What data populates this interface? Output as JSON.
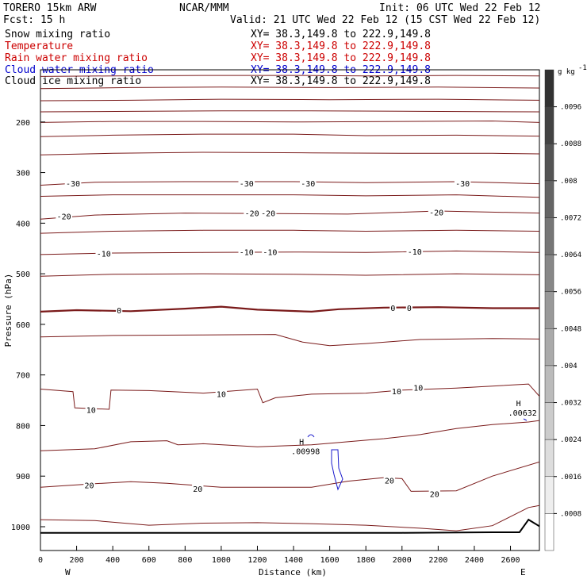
{
  "header": {
    "model": "TORERO  15km ARW",
    "org": "NCAR/MMM",
    "init": "Init: 06 UTC Wed 22 Feb 12",
    "fcst": "Fcst:   15 h",
    "valid": "Valid: 21 UTC Wed 22 Feb 12 (15 CST Wed 22 Feb 12)",
    "fields": [
      {
        "name": "Snow mixing ratio",
        "xy": "XY=  38.3,149.8 to 222.9,149.8",
        "color": "#000000"
      },
      {
        "name": "Temperature",
        "xy": "XY=  38.3,149.8 to 222.9,149.8",
        "color": "#cc0000"
      },
      {
        "name": "Rain water mixing ratio",
        "xy": "XY=  38.3,149.8 to 222.9,149.8",
        "color": "#cc0000"
      },
      {
        "name": "Cloud water mixing ratio",
        "xy": "XY=  38.3,149.8 to 222.9,149.8",
        "color": "#0000cc"
      },
      {
        "name": "Cloud ice mixing ratio",
        "xy": "XY=  38.3,149.8 to 222.9,149.8",
        "color": "#000000"
      }
    ]
  },
  "colors": {
    "temperature": "#7a1a1a",
    "freezing": "#7a1a1a",
    "cloud_water": "#1a1acc",
    "terrain": "#000000"
  },
  "chart_data": {
    "type": "contour",
    "xlabel": "Distance (km)",
    "ylabel": "Pressure (hPa)",
    "xlim": [
      0,
      2760
    ],
    "ylim": [
      1000,
      100
    ],
    "x_ticks": [
      0,
      200,
      400,
      600,
      800,
      1000,
      1200,
      1400,
      1600,
      1800,
      2000,
      2200,
      2400,
      2600
    ],
    "y_ticks": [
      200,
      300,
      400,
      500,
      600,
      700,
      800,
      900,
      1000
    ],
    "x_end_labels": {
      "left": "W",
      "right": "E"
    },
    "colorbar": {
      "unit": "g kg",
      "unit_exp": "-1",
      "levels": [
        ".0096",
        ".0088",
        ".008",
        ".0072",
        ".0064",
        ".0056",
        ".0048",
        ".004",
        ".0032",
        ".0024",
        ".0016",
        ".0008"
      ]
    },
    "temperature_labels": [
      {
        "text": "-30",
        "x": 180,
        "p": 321
      },
      {
        "text": "-30",
        "x": 1140,
        "p": 321
      },
      {
        "text": "-30",
        "x": 1480,
        "p": 321
      },
      {
        "text": "-30",
        "x": 2335,
        "p": 321
      },
      {
        "text": "-20",
        "x": 130,
        "p": 386
      },
      {
        "text": "-20",
        "x": 1170,
        "p": 380
      },
      {
        "text": "-20",
        "x": 1260,
        "p": 380
      },
      {
        "text": "-20",
        "x": 2190,
        "p": 378
      },
      {
        "text": "-10",
        "x": 350,
        "p": 460
      },
      {
        "text": "-10",
        "x": 1140,
        "p": 457
      },
      {
        "text": "-10",
        "x": 1270,
        "p": 457
      },
      {
        "text": "-10",
        "x": 2070,
        "p": 456
      },
      {
        "text": "0",
        "x": 435,
        "p": 572
      },
      {
        "text": "0",
        "x": 1950,
        "p": 567
      },
      {
        "text": "0",
        "x": 2040,
        "p": 567
      },
      {
        "text": "10",
        "x": 1000,
        "p": 737
      },
      {
        "text": "10",
        "x": 1970,
        "p": 732
      },
      {
        "text": "10",
        "x": 2090,
        "p": 725
      },
      {
        "text": "10",
        "x": 280,
        "p": 769
      },
      {
        "text": "20",
        "x": 270,
        "p": 918
      },
      {
        "text": "20",
        "x": 870,
        "p": 925
      },
      {
        "text": "20",
        "x": 1930,
        "p": 908
      },
      {
        "text": "20",
        "x": 2180,
        "p": 935
      }
    ],
    "cloud_water_maxima": [
      {
        "label": "H",
        "value": ".00998",
        "x": 1440,
        "p": 838
      },
      {
        "label": "H",
        "value": ".00632",
        "x": 2640,
        "p": 762
      }
    ],
    "temperature_contours": [
      {
        "level": -60,
        "points": [
          [
            0,
            110
          ],
          [
            400,
            109
          ],
          [
            900,
            108
          ],
          [
            1400,
            108
          ],
          [
            1800,
            109
          ],
          [
            2300,
            108
          ],
          [
            2760,
            109
          ]
        ]
      },
      {
        "level": -60,
        "points": [
          [
            0,
            134
          ],
          [
            500,
            132
          ],
          [
            1000,
            131
          ],
          [
            1600,
            132
          ],
          [
            2200,
            131
          ],
          [
            2760,
            133
          ]
        ]
      },
      {
        "level": -55,
        "points": [
          [
            0,
            158
          ],
          [
            500,
            157
          ],
          [
            1000,
            155
          ],
          [
            1600,
            156
          ],
          [
            2200,
            155
          ],
          [
            2760,
            157
          ]
        ]
      },
      {
        "level": -50,
        "points": [
          [
            0,
            180
          ],
          [
            500,
            179
          ],
          [
            1000,
            178
          ],
          [
            1500,
            178
          ],
          [
            2100,
            179
          ],
          [
            2760,
            180
          ]
        ]
      },
      {
        "level": -45,
        "points": [
          [
            0,
            201
          ],
          [
            400,
            199
          ],
          [
            900,
            199
          ],
          [
            1400,
            200
          ],
          [
            2000,
            199
          ],
          [
            2500,
            198
          ],
          [
            2760,
            201
          ]
        ]
      },
      {
        "level": -40,
        "points": [
          [
            0,
            229
          ],
          [
            400,
            226
          ],
          [
            900,
            224
          ],
          [
            1400,
            224
          ],
          [
            1800,
            227
          ],
          [
            2300,
            226
          ],
          [
            2760,
            228
          ]
        ]
      },
      {
        "level": -35,
        "points": [
          [
            0,
            265
          ],
          [
            400,
            262
          ],
          [
            900,
            260
          ],
          [
            1500,
            261
          ],
          [
            2000,
            262
          ],
          [
            2500,
            262
          ],
          [
            2760,
            263
          ]
        ]
      },
      {
        "level": -30,
        "points": [
          [
            0,
            325
          ],
          [
            300,
            319
          ],
          [
            800,
            318
          ],
          [
            1400,
            318
          ],
          [
            1800,
            320
          ],
          [
            2300,
            318
          ],
          [
            2760,
            322
          ]
        ]
      },
      {
        "level": -25,
        "points": [
          [
            0,
            347
          ],
          [
            400,
            344
          ],
          [
            900,
            344
          ],
          [
            1400,
            344
          ],
          [
            1800,
            346
          ],
          [
            2300,
            344
          ],
          [
            2760,
            349
          ]
        ]
      },
      {
        "level": -20,
        "points": [
          [
            0,
            392
          ],
          [
            300,
            384
          ],
          [
            800,
            380
          ],
          [
            1300,
            381
          ],
          [
            1700,
            382
          ],
          [
            2200,
            376
          ],
          [
            2760,
            380
          ]
        ]
      },
      {
        "level": -15,
        "points": [
          [
            0,
            420
          ],
          [
            400,
            416
          ],
          [
            900,
            414
          ],
          [
            1400,
            414
          ],
          [
            1800,
            416
          ],
          [
            2300,
            414
          ],
          [
            2760,
            416
          ]
        ]
      },
      {
        "level": -10,
        "points": [
          [
            0,
            462
          ],
          [
            400,
            459
          ],
          [
            900,
            458
          ],
          [
            1400,
            457
          ],
          [
            1800,
            458
          ],
          [
            2300,
            455
          ],
          [
            2760,
            458
          ]
        ]
      },
      {
        "level": -5,
        "points": [
          [
            0,
            505
          ],
          [
            400,
            501
          ],
          [
            900,
            500
          ],
          [
            1400,
            501
          ],
          [
            1800,
            503
          ],
          [
            2300,
            500
          ],
          [
            2760,
            502
          ]
        ]
      },
      {
        "level": 0,
        "points": [
          [
            0,
            575
          ],
          [
            200,
            572
          ],
          [
            500,
            574
          ],
          [
            800,
            569
          ],
          [
            1000,
            565
          ],
          [
            1200,
            571
          ],
          [
            1500,
            575
          ],
          [
            1650,
            570
          ],
          [
            1900,
            567
          ],
          [
            2200,
            566
          ],
          [
            2500,
            568
          ],
          [
            2760,
            568
          ]
        ]
      },
      {
        "level": 5,
        "points": [
          [
            0,
            625
          ],
          [
            400,
            622
          ],
          [
            900,
            621
          ],
          [
            1300,
            620
          ],
          [
            1450,
            635
          ],
          [
            1600,
            642
          ],
          [
            1800,
            638
          ],
          [
            2100,
            630
          ],
          [
            2500,
            628
          ],
          [
            2760,
            629
          ]
        ]
      },
      {
        "level": 10,
        "points": [
          [
            0,
            728
          ],
          [
            180,
            733
          ],
          [
            190,
            765
          ],
          [
            380,
            768
          ],
          [
            390,
            730
          ],
          [
            600,
            731
          ],
          [
            900,
            736
          ],
          [
            1200,
            728
          ],
          [
            1230,
            755
          ],
          [
            1300,
            745
          ],
          [
            1500,
            738
          ],
          [
            1800,
            736
          ],
          [
            2000,
            730
          ],
          [
            2300,
            726
          ],
          [
            2500,
            722
          ],
          [
            2700,
            718
          ],
          [
            2760,
            742
          ]
        ]
      },
      {
        "level": 15,
        "points": [
          [
            0,
            850
          ],
          [
            300,
            846
          ],
          [
            500,
            832
          ],
          [
            700,
            830
          ],
          [
            760,
            838
          ],
          [
            900,
            836
          ],
          [
            1200,
            842
          ],
          [
            1500,
            838
          ],
          [
            1700,
            832
          ],
          [
            1900,
            826
          ],
          [
            2100,
            818
          ],
          [
            2300,
            806
          ],
          [
            2500,
            798
          ],
          [
            2700,
            793
          ],
          [
            2760,
            790
          ]
        ]
      },
      {
        "level": 20,
        "points": [
          [
            0,
            922
          ],
          [
            300,
            915
          ],
          [
            500,
            911
          ],
          [
            700,
            914
          ],
          [
            1000,
            922
          ],
          [
            1300,
            922
          ],
          [
            1500,
            922
          ],
          [
            1700,
            910
          ],
          [
            1900,
            903
          ],
          [
            2000,
            905
          ],
          [
            2050,
            930
          ],
          [
            2300,
            929
          ],
          [
            2500,
            900
          ],
          [
            2760,
            872
          ]
        ]
      },
      {
        "level": 25,
        "points": [
          [
            0,
            986
          ],
          [
            300,
            988
          ],
          [
            600,
            997
          ],
          [
            900,
            993
          ],
          [
            1200,
            992
          ],
          [
            1500,
            994
          ],
          [
            1800,
            997
          ],
          [
            2100,
            1003
          ],
          [
            2300,
            1008
          ],
          [
            2500,
            998
          ],
          [
            2700,
            962
          ],
          [
            2760,
            958
          ]
        ]
      }
    ],
    "terrain": [
      [
        0,
        1012
      ],
      [
        500,
        1012
      ],
      [
        1200,
        1012
      ],
      [
        2000,
        1012
      ],
      [
        2500,
        1011
      ],
      [
        2650,
        1011
      ],
      [
        2700,
        986
      ],
      [
        2760,
        999
      ]
    ]
  }
}
